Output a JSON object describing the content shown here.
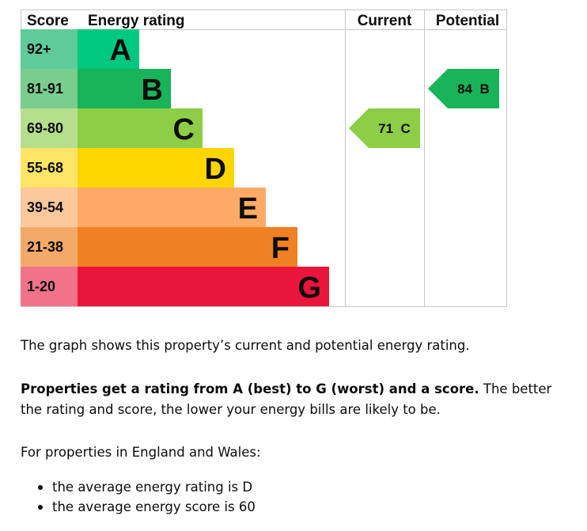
{
  "chart_data": {
    "type": "table",
    "headers": {
      "score": "Score",
      "rating": "Energy rating",
      "current": "Current",
      "potential": "Potential"
    },
    "bands": [
      {
        "letter": "A",
        "range": "92+",
        "color": "#00c781",
        "score_bg": "#5fcb9a"
      },
      {
        "letter": "B",
        "range": "81-91",
        "color": "#19b459",
        "score_bg": "#79cd8e"
      },
      {
        "letter": "C",
        "range": "69-80",
        "color": "#8dce46",
        "score_bg": "#b6df8c"
      },
      {
        "letter": "D",
        "range": "55-68",
        "color": "#ffd500",
        "score_bg": "#ffe566"
      },
      {
        "letter": "E",
        "range": "39-54",
        "color": "#fcaa65",
        "score_bg": "#fdc89c"
      },
      {
        "letter": "F",
        "range": "21-38",
        "color": "#ef8023",
        "score_bg": "#f5a968"
      },
      {
        "letter": "G",
        "range": "1-20",
        "color": "#e9153b",
        "score_bg": "#f07389"
      }
    ],
    "current": {
      "score": 71,
      "band": "C",
      "label": "71 C",
      "color": "#8dce46"
    },
    "potential": {
      "score": 84,
      "band": "B",
      "label": "84 B",
      "color": "#19b459"
    }
  },
  "description": {
    "line1": "The graph shows this property’s current and potential energy rating.",
    "bold": "Properties get a rating from A (best) to G (worst) and a score.",
    "rest": " The better the rating and score, the lower your energy bills are likely to be.",
    "intro": "For properties in England and Wales:",
    "bullets": [
      "the average energy rating is D",
      "the average energy score is 60"
    ]
  }
}
